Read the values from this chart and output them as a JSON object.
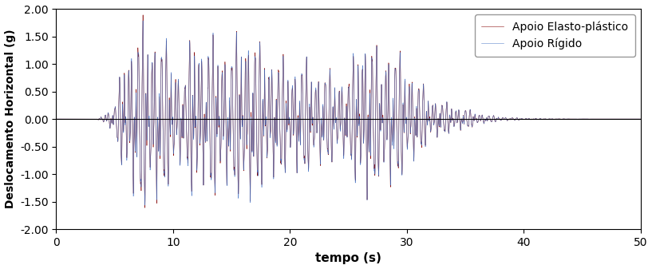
{
  "xlabel": "tempo (s)",
  "ylabel": "Deslocamento Horizontal (g)",
  "xlim": [
    0,
    50
  ],
  "ylim": [
    -2.0,
    2.0
  ],
  "yticks": [
    -2.0,
    -1.5,
    -1.0,
    -0.5,
    0.0,
    0.5,
    1.0,
    1.5,
    2.0
  ],
  "xticks": [
    0,
    10,
    20,
    30,
    40,
    50
  ],
  "legend_labels": [
    "Apoio Rígido",
    "Apoio Elasto-plástico"
  ],
  "color_rigid": "#4472C4",
  "color_elasto": "#8B1010",
  "dt": 0.005,
  "duration": 50.0,
  "amplitude_peak": 1.8,
  "xlabel_fontsize": 11,
  "ylabel_fontsize": 10,
  "legend_fontsize": 10,
  "tick_fontsize": 10
}
